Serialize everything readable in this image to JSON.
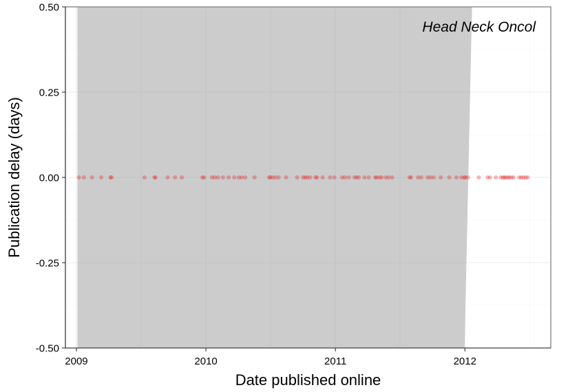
{
  "chart_data": {
    "type": "scatter",
    "title": "",
    "annotation": "Head Neck Oncol",
    "xlabel": "Date published online",
    "ylabel": "Publication delay (days)",
    "xlim": [
      "2008-12-01",
      "2012-08-30"
    ],
    "ylim": [
      -0.5,
      0.5
    ],
    "x_ticks": [
      {
        "value": "2009-01-01",
        "label": "2009"
      },
      {
        "value": "2010-01-01",
        "label": "2010"
      },
      {
        "value": "2011-01-01",
        "label": "2011"
      },
      {
        "value": "2012-01-01",
        "label": "2012"
      }
    ],
    "y_ticks": [
      {
        "value": 0.5,
        "label": "0.50"
      },
      {
        "value": 0.25,
        "label": "0.25"
      },
      {
        "value": 0,
        "label": "0.00"
      },
      {
        "value": -0.25,
        "label": "-0.25"
      },
      {
        "value": -0.5,
        "label": "-0.50"
      }
    ],
    "grid": true,
    "shaded_region": {
      "start": "2009-01-04",
      "end_bottom": "2011-12-31",
      "end_top": "2012-01-21",
      "color": "#cccccc"
    },
    "point_color": "#e41a1c",
    "point_opacity": 0.3,
    "points": [
      {
        "x": "2009-01-08",
        "y": 0
      },
      {
        "x": "2009-01-22",
        "y": 0
      },
      {
        "x": "2009-02-14",
        "y": 0
      },
      {
        "x": "2009-03-12",
        "y": 0
      },
      {
        "x": "2009-04-07",
        "y": 0
      },
      {
        "x": "2009-04-10",
        "y": 0
      },
      {
        "x": "2009-07-12",
        "y": 0
      },
      {
        "x": "2009-08-09",
        "y": 0
      },
      {
        "x": "2009-08-12",
        "y": 0
      },
      {
        "x": "2009-09-15",
        "y": 0
      },
      {
        "x": "2009-10-06",
        "y": 0
      },
      {
        "x": "2009-10-25",
        "y": 0
      },
      {
        "x": "2009-12-22",
        "y": 0
      },
      {
        "x": "2009-12-27",
        "y": 0
      },
      {
        "x": "2010-01-18",
        "y": 0
      },
      {
        "x": "2010-01-26",
        "y": 0
      },
      {
        "x": "2010-02-04",
        "y": 0
      },
      {
        "x": "2010-02-18",
        "y": 0
      },
      {
        "x": "2010-03-06",
        "y": 0
      },
      {
        "x": "2010-03-22",
        "y": 0
      },
      {
        "x": "2010-04-04",
        "y": 0
      },
      {
        "x": "2010-04-12",
        "y": 0
      },
      {
        "x": "2010-04-22",
        "y": 0
      },
      {
        "x": "2010-05-18",
        "y": 0
      },
      {
        "x": "2010-06-28",
        "y": 0
      },
      {
        "x": "2010-07-02",
        "y": 0
      },
      {
        "x": "2010-07-08",
        "y": 0
      },
      {
        "x": "2010-07-16",
        "y": 0
      },
      {
        "x": "2010-07-25",
        "y": 0
      },
      {
        "x": "2010-08-15",
        "y": 0
      },
      {
        "x": "2010-09-15",
        "y": 0
      },
      {
        "x": "2010-10-02",
        "y": 0
      },
      {
        "x": "2010-10-08",
        "y": 0
      },
      {
        "x": "2010-10-14",
        "y": 0
      },
      {
        "x": "2010-10-22",
        "y": 0
      },
      {
        "x": "2010-11-06",
        "y": 0
      },
      {
        "x": "2010-11-10",
        "y": 0
      },
      {
        "x": "2010-11-26",
        "y": 0
      },
      {
        "x": "2010-12-17",
        "y": 0
      },
      {
        "x": "2010-12-29",
        "y": 0
      },
      {
        "x": "2011-01-20",
        "y": 0
      },
      {
        "x": "2011-01-28",
        "y": 0
      },
      {
        "x": "2011-02-08",
        "y": 0
      },
      {
        "x": "2011-02-24",
        "y": 0
      },
      {
        "x": "2011-03-02",
        "y": 0
      },
      {
        "x": "2011-03-08",
        "y": 0
      },
      {
        "x": "2011-03-24",
        "y": 0
      },
      {
        "x": "2011-04-05",
        "y": 0
      },
      {
        "x": "2011-04-23",
        "y": 0
      },
      {
        "x": "2011-04-27",
        "y": 0
      },
      {
        "x": "2011-05-05",
        "y": 0
      },
      {
        "x": "2011-05-11",
        "y": 0
      },
      {
        "x": "2011-05-23",
        "y": 0
      },
      {
        "x": "2011-05-31",
        "y": 0
      },
      {
        "x": "2011-06-10",
        "y": 0
      },
      {
        "x": "2011-07-29",
        "y": 0
      },
      {
        "x": "2011-08-02",
        "y": 0
      },
      {
        "x": "2011-08-22",
        "y": 0
      },
      {
        "x": "2011-08-31",
        "y": 0
      },
      {
        "x": "2011-09-18",
        "y": 0
      },
      {
        "x": "2011-09-26",
        "y": 0
      },
      {
        "x": "2011-10-05",
        "y": 0
      },
      {
        "x": "2011-10-25",
        "y": 0
      },
      {
        "x": "2011-11-18",
        "y": 0
      },
      {
        "x": "2011-12-08",
        "y": 0
      },
      {
        "x": "2011-12-22",
        "y": 0
      },
      {
        "x": "2011-12-30",
        "y": 0
      },
      {
        "x": "2012-01-02",
        "y": 0
      },
      {
        "x": "2012-01-10",
        "y": 0
      },
      {
        "x": "2012-02-09",
        "y": 0
      },
      {
        "x": "2012-03-05",
        "y": 0
      },
      {
        "x": "2012-03-12",
        "y": 0
      },
      {
        "x": "2012-03-28",
        "y": 0
      },
      {
        "x": "2012-04-11",
        "y": 0
      },
      {
        "x": "2012-04-17",
        "y": 0
      },
      {
        "x": "2012-04-21",
        "y": 0
      },
      {
        "x": "2012-04-25",
        "y": 0
      },
      {
        "x": "2012-05-01",
        "y": 0
      },
      {
        "x": "2012-05-05",
        "y": 0
      },
      {
        "x": "2012-05-11",
        "y": 0
      },
      {
        "x": "2012-05-17",
        "y": 0
      },
      {
        "x": "2012-06-02",
        "y": 0
      },
      {
        "x": "2012-06-08",
        "y": 0
      },
      {
        "x": "2012-06-14",
        "y": 0
      },
      {
        "x": "2012-06-20",
        "y": 0
      },
      {
        "x": "2012-06-26",
        "y": 0
      }
    ]
  }
}
